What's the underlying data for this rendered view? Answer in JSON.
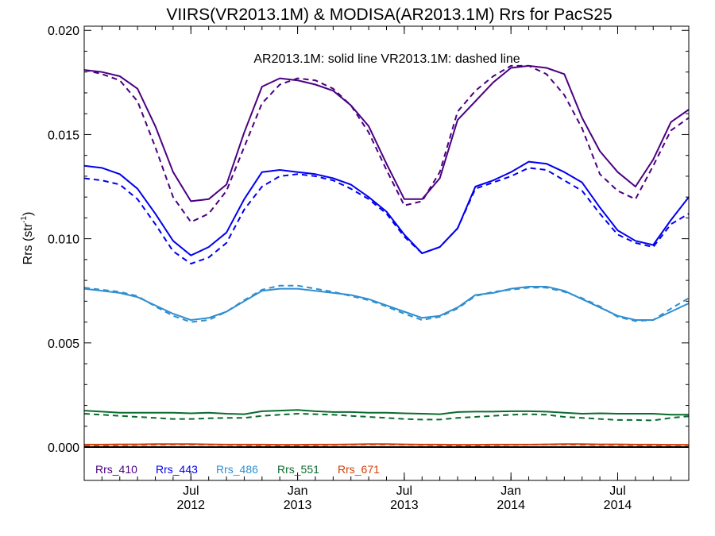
{
  "chart_data": {
    "type": "line",
    "title": "VIIRS(VR2013.1M) & MODISA(AR2013.1M)  Rrs for PacS25",
    "annotation": "AR2013.1M: solid line   VR2013.1M: dashed line",
    "ylabel": "Rrs (str",
    "ylabel_sup": "-1",
    "ylabel_close": ")",
    "ylim": [
      -0.0016,
      0.0202
    ],
    "xlim": [
      "2012-01",
      "2014-11"
    ],
    "y_ticks": [
      "0.000",
      "0.005",
      "0.010",
      "0.015",
      "0.020"
    ],
    "x_ticks": [
      {
        "month": "Jul",
        "year": "2012",
        "date": "2012-07"
      },
      {
        "month": "Jan",
        "year": "2013",
        "date": "2013-01"
      },
      {
        "month": "Jul",
        "year": "2013",
        "date": "2013-07"
      },
      {
        "month": "Jan",
        "year": "2014",
        "date": "2014-01"
      },
      {
        "month": "Jul",
        "year": "2014",
        "date": "2014-07"
      }
    ],
    "x": [
      "2012-01",
      "2012-02",
      "2012-03",
      "2012-04",
      "2012-05",
      "2012-06",
      "2012-07",
      "2012-08",
      "2012-09",
      "2012-10",
      "2012-11",
      "2012-12",
      "2013-01",
      "2013-02",
      "2013-03",
      "2013-04",
      "2013-05",
      "2013-06",
      "2013-07",
      "2013-08",
      "2013-09",
      "2013-10",
      "2013-11",
      "2013-12",
      "2014-01",
      "2014-02",
      "2014-03",
      "2014-04",
      "2014-05",
      "2014-06",
      "2014-07",
      "2014-08",
      "2014-09",
      "2014-10",
      "2014-11"
    ],
    "series": [
      {
        "name": "Rrs_410",
        "color": "#4B0082",
        "solid": [
          0.0181,
          0.018,
          0.0178,
          0.0172,
          0.0154,
          0.0132,
          0.0118,
          0.0119,
          0.0126,
          0.0151,
          0.0173,
          0.0177,
          0.0176,
          0.0174,
          0.0171,
          0.0164,
          0.0154,
          0.0136,
          0.0119,
          0.0119,
          0.0129,
          0.0157,
          0.0166,
          0.0175,
          0.0182,
          0.0183,
          0.0182,
          0.0179,
          0.0158,
          0.0142,
          0.0132,
          0.0125,
          0.0138,
          0.0156,
          0.0162
        ],
        "dashed": [
          0.0181,
          0.0179,
          0.0176,
          0.0166,
          0.0144,
          0.012,
          0.0108,
          0.0112,
          0.0123,
          0.0144,
          0.0165,
          0.0174,
          0.0177,
          0.0176,
          0.0172,
          0.0164,
          0.0151,
          0.0133,
          0.0116,
          0.0118,
          0.0132,
          0.0161,
          0.0171,
          0.0178,
          0.0183,
          0.0183,
          0.0179,
          0.0169,
          0.0153,
          0.0131,
          0.0123,
          0.0119,
          0.0135,
          0.0152,
          0.0158
        ]
      },
      {
        "name": "Rrs_443",
        "color": "#0000F0",
        "solid": [
          0.0135,
          0.0134,
          0.0131,
          0.0124,
          0.0112,
          0.0099,
          0.0092,
          0.0096,
          0.0103,
          0.0119,
          0.0132,
          0.0133,
          0.0132,
          0.0131,
          0.0129,
          0.0126,
          0.012,
          0.0113,
          0.0102,
          0.0093,
          0.0096,
          0.0105,
          0.0125,
          0.0128,
          0.0132,
          0.0137,
          0.0136,
          0.0132,
          0.0127,
          0.0115,
          0.0104,
          0.0099,
          0.0097,
          0.0109,
          0.012
        ],
        "dashed": [
          0.0129,
          0.0128,
          0.0126,
          0.0119,
          0.0107,
          0.0094,
          0.0088,
          0.0091,
          0.0098,
          0.0114,
          0.0125,
          0.013,
          0.0131,
          0.013,
          0.0128,
          0.0124,
          0.0119,
          0.0112,
          0.0101,
          0.0093,
          0.0096,
          0.0105,
          0.0124,
          0.0127,
          0.013,
          0.0134,
          0.0133,
          0.0128,
          0.0123,
          0.0112,
          0.0102,
          0.0098,
          0.0096,
          0.0107,
          0.0112
        ]
      },
      {
        "name": "Rrs_486",
        "color": "#2F8FD0",
        "solid": [
          0.0076,
          0.0075,
          0.0074,
          0.0072,
          0.0068,
          0.0064,
          0.0061,
          0.0062,
          0.0065,
          0.007,
          0.0075,
          0.0076,
          0.0076,
          0.0075,
          0.0074,
          0.0073,
          0.0071,
          0.0068,
          0.0065,
          0.0062,
          0.0063,
          0.0067,
          0.0073,
          0.0074,
          0.0076,
          0.0077,
          0.0077,
          0.0075,
          0.0071,
          0.0067,
          0.0063,
          0.0061,
          0.0061,
          0.0065,
          0.0069
        ],
        "dashed": [
          0.00765,
          0.00755,
          0.00745,
          0.00725,
          0.00675,
          0.0063,
          0.006,
          0.0061,
          0.0065,
          0.00705,
          0.00755,
          0.00775,
          0.00775,
          0.0076,
          0.00745,
          0.00725,
          0.00705,
          0.00675,
          0.0064,
          0.0061,
          0.00625,
          0.00665,
          0.00725,
          0.00745,
          0.00755,
          0.00765,
          0.00765,
          0.00745,
          0.00715,
          0.00675,
          0.00625,
          0.00605,
          0.0061,
          0.00665,
          0.00715
        ]
      },
      {
        "name": "Rrs_551",
        "color": "#0B6B2E",
        "solid": [
          0.00175,
          0.0017,
          0.00165,
          0.00165,
          0.00165,
          0.00165,
          0.00162,
          0.00165,
          0.0016,
          0.00158,
          0.00172,
          0.00175,
          0.00178,
          0.00172,
          0.00168,
          0.00168,
          0.00165,
          0.00165,
          0.00162,
          0.0016,
          0.00158,
          0.00168,
          0.0017,
          0.0017,
          0.00172,
          0.00172,
          0.0017,
          0.00165,
          0.0016,
          0.00162,
          0.0016,
          0.0016,
          0.0016,
          0.00155,
          0.00155
        ],
        "dashed": [
          0.0016,
          0.00155,
          0.0015,
          0.00145,
          0.0014,
          0.00135,
          0.00135,
          0.00138,
          0.0014,
          0.0014,
          0.0015,
          0.00155,
          0.0016,
          0.00158,
          0.00155,
          0.0015,
          0.00145,
          0.0014,
          0.00135,
          0.00132,
          0.00132,
          0.0014,
          0.00145,
          0.0015,
          0.00155,
          0.00158,
          0.00155,
          0.00145,
          0.0014,
          0.00135,
          0.0013,
          0.0013,
          0.00128,
          0.0014,
          0.00148
        ]
      },
      {
        "name": "Rrs_671",
        "color": "#D5400A",
        "solid": [
          0.00012,
          0.00012,
          0.00013,
          0.00013,
          0.00014,
          0.00014,
          0.00014,
          0.00013,
          0.00012,
          0.00012,
          0.00012,
          0.00011,
          0.00011,
          0.00012,
          0.00012,
          0.00013,
          0.00014,
          0.00014,
          0.00013,
          0.00012,
          0.00012,
          0.00011,
          0.00011,
          0.00012,
          0.00012,
          0.00012,
          0.00013,
          0.00014,
          0.00014,
          0.00013,
          0.00013,
          0.00012,
          0.00012,
          0.00011,
          0.00011
        ],
        "dashed": [
          8e-05,
          8e-05,
          9e-05,
          0.0001,
          0.00011,
          0.00012,
          0.00012,
          0.00011,
          0.0001,
          9e-05,
          9e-05,
          8e-05,
          8e-05,
          9e-05,
          0.0001,
          0.00011,
          0.00012,
          0.00012,
          0.00011,
          0.0001,
          9e-05,
          8e-05,
          8e-05,
          9e-05,
          0.0001,
          0.00011,
          0.00012,
          0.00012,
          0.00011,
          0.0001,
          0.0001,
          9e-05,
          9e-05,
          9e-05,
          9e-05
        ]
      }
    ],
    "zero_line": true,
    "grid": false,
    "legend": "bottom-left inside"
  }
}
